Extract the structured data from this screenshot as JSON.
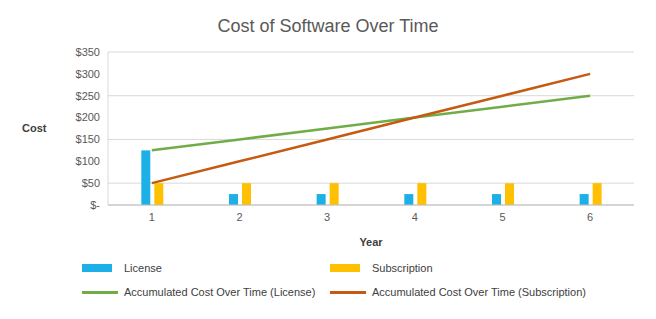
{
  "chart_data": {
    "type": "bar",
    "title": "Cost of Software Over Time",
    "x_label": "Year",
    "y_label": "Cost",
    "categories": [
      "1",
      "2",
      "3",
      "4",
      "5",
      "6"
    ],
    "series": [
      {
        "name": "License",
        "type": "bar",
        "color": "#1cb0e6",
        "values": [
          125,
          25,
          25,
          25,
          25,
          25
        ]
      },
      {
        "name": "Subscription",
        "type": "bar",
        "color": "#ffc000",
        "values": [
          50,
          50,
          50,
          50,
          50,
          50
        ]
      },
      {
        "name": "Accumulated Cost Over Time (License)",
        "type": "line",
        "color": "#70ad47",
        "values": [
          125,
          150,
          175,
          200,
          225,
          250
        ]
      },
      {
        "name": "Accumulated Cost Over Time (Subscription)",
        "type": "line",
        "color": "#c55a11",
        "values": [
          50,
          100,
          150,
          200,
          250,
          300
        ]
      }
    ],
    "ylim": [
      0,
      350
    ],
    "yticks": [
      {
        "value": 0,
        "label": "$-"
      },
      {
        "value": 50,
        "label": "$50"
      },
      {
        "value": 100,
        "label": "$100"
      },
      {
        "value": 150,
        "label": "$150"
      },
      {
        "value": 200,
        "label": "$200"
      },
      {
        "value": 250,
        "label": "$250"
      },
      {
        "value": 300,
        "label": "$300"
      },
      {
        "value": 350,
        "label": "$350"
      }
    ],
    "grid": true,
    "legend": "bottom"
  }
}
